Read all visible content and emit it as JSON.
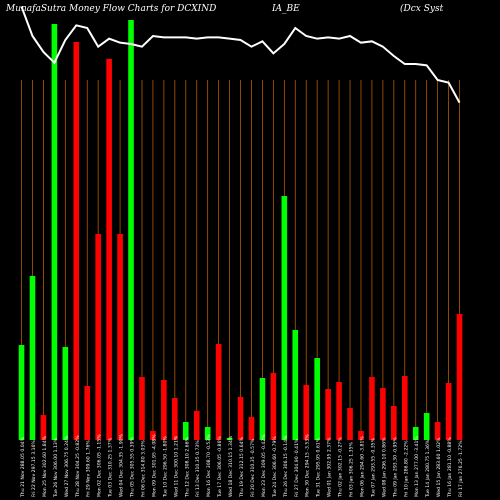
{
  "header": {
    "part1": "MunafaSutra  Money Flow  Charts for DCXIND",
    "part2": "IA_BE",
    "part3": "(Dcx Syst"
  },
  "chart_data": {
    "type": "bar",
    "background": "#000000",
    "gridline_color": "#b35a00",
    "colors": {
      "up": "#00ff00",
      "down": "#ff0000",
      "line": "#ffffff"
    },
    "categories": [
      "Fri 17 Jan 2025",
      "Thu 16 Jan 2025",
      "Wed 15 Jan 2025",
      "Tue 14 Jan 2025",
      "Mon 13 Jan 2025",
      "Fri 10 Jan 2025",
      "Thu 09 Jan 2025",
      "Wed 08 Jan 2025",
      "Tue 07 Jan 2025",
      "Mon 06 Jan 2025",
      "Fri 03 Jan 2025",
      "Thu 02 Jan 2025",
      "Wed 01 Jan 2025",
      "Tue 31 Dec 2024",
      "Mon 30 Dec 2024",
      "Fri 27 Dec 2024",
      "Thu 26 Dec 2024",
      "Tue 24 Dec 2024",
      "Mon 23 Dec 2024",
      "Fri 20 Dec 2024",
      "Thu 19 Dec 2024",
      "Wed 18 Dec 2024",
      "Tue 17 Dec 2024",
      "Mon 16 Dec 2024",
      "Fri 13 Dec 2024",
      "Thu 12 Dec 2024",
      "Wed 11 Dec 2024",
      "Tue 10 Dec 2024",
      "Mon 09 Dec 2024",
      "Fri 06 Dec 2024",
      "Thu 05 Dec 2024",
      "Wed 04 Dec 2024",
      "Tue 03 Dec 2024",
      "Mon 02 Dec 2024",
      "Fri 29 Nov 2024",
      "Thu 28 Nov 2024",
      "Wed 27 Nov 2024",
      "Tue 26 Nov 2024",
      "Mon 25 Nov 2024",
      "Fri 22 Nov 2024",
      "Thu 21 Nov 2024"
    ],
    "tick_labels": [
      "Fri 17 Jan 276.25 -1.72%",
      "Thu 16 Jan 281.10 -0.88%",
      "Wed 15 Jan 283.60 1.02%",
      "Tue 14 Jan 280.75 1.36%",
      "Mon 13 Jan 277.00 -3.41%",
      "Fri 10 Jan 286.80 -2.22%",
      "Thu 09 Jan 293.30 -0.95%",
      "Wed 08 Jan 296.10 0.86%",
      "Tue 07 Jan 293.55 -0.35%",
      "Mon 06 Jan 294.60 -3.81%",
      "Fri 03 Jan 306.25 1.35%",
      "Thu 02 Jan 302.15 -0.27%",
      "Wed 01 Jan 302.95 2.37%",
      "Tue 31 Dec 295.95 0.61%",
      "Mon 30 Dec 294.15 -3.53%",
      "Fri 27 Dec 304.90 -0.41%",
      "Thu 26 Dec 306.15 -0.14%",
      "Tue 24 Dec 306.60 -0.79%",
      "Mon 23 Dec 309.05 -0.42%",
      "Fri 20 Dec 310.35 -0.57%",
      "Thu 19 Dec 312.15 0.64%",
      "Wed 18 Dec 310.15 1.34%",
      "Tue 17 Dec 306.05 -0.86%",
      "Mon 16 Dec 308.70 -0.53%",
      "Fri 13 Dec 310.35 0.73%",
      "Thu 12 Dec 308.10 2.66%",
      "Wed 11 Dec 300.10 1.21%",
      "Tue 10 Dec 296.50 -1.80%",
      "Mon 09 Dec 301.95 -4.08%",
      "Fri 06 Dec 314.80 3.03%",
      "Thu 05 Dec 305.55 0.39%",
      "Wed 04 Dec 304.35 -1.90%",
      "Tue 03 Dec 310.25 1.37%",
      "Mon 02 Dec 306.05 -1.15%",
      "Fri 29 Nov 309.60 1.76%",
      "Thu 28 Nov 304.25 -0.82%",
      "Wed 27 Nov 306.75 0.24%",
      "Tue 26 Nov 306.00 1.13%",
      "Mon 25 Nov 302.60 1.84%",
      "Fri 22 Nov 297.15 3.16%",
      "Thu 21 Nov 288.05 0.04%"
    ],
    "bars": [
      {
        "color": "down",
        "value": 126
      },
      {
        "color": "down",
        "value": 57
      },
      {
        "color": "down",
        "value": 18
      },
      {
        "color": "up",
        "value": 27
      },
      {
        "color": "up",
        "value": 13
      },
      {
        "color": "down",
        "value": 64
      },
      {
        "color": "down",
        "value": 34
      },
      {
        "color": "down",
        "value": 52
      },
      {
        "color": "down",
        "value": 63
      },
      {
        "color": "down",
        "value": 9
      },
      {
        "color": "down",
        "value": 32
      },
      {
        "color": "down",
        "value": 58
      },
      {
        "color": "down",
        "value": 51
      },
      {
        "color": "up",
        "value": 82
      },
      {
        "color": "down",
        "value": 55
      },
      {
        "color": "up",
        "value": 110
      },
      {
        "color": "up",
        "value": 244
      },
      {
        "color": "down",
        "value": 67
      },
      {
        "color": "up",
        "value": 62
      },
      {
        "color": "down",
        "value": 23
      },
      {
        "color": "down",
        "value": 43
      },
      {
        "color": "up",
        "value": 2
      },
      {
        "color": "down",
        "value": 96
      },
      {
        "color": "up",
        "value": 13
      },
      {
        "color": "down",
        "value": 29
      },
      {
        "color": "up",
        "value": 18
      },
      {
        "color": "down",
        "value": 42
      },
      {
        "color": "down",
        "value": 60
      },
      {
        "color": "down",
        "value": 9
      },
      {
        "color": "down",
        "value": 63
      },
      {
        "color": "up",
        "value": 420
      },
      {
        "color": "down",
        "value": 206
      },
      {
        "color": "down",
        "value": 381
      },
      {
        "color": "down",
        "value": 206
      },
      {
        "color": "down",
        "value": 54
      },
      {
        "color": "down",
        "value": 398
      },
      {
        "color": "up",
        "value": 93
      },
      {
        "color": "up",
        "value": 416
      },
      {
        "color": "down",
        "value": 25
      },
      {
        "color": "up",
        "value": 164
      },
      {
        "color": "up",
        "value": 95
      }
    ],
    "price_line": [
      253,
      268,
      270,
      281,
      282,
      282,
      288,
      295,
      299,
      298,
      303,
      301,
      302,
      301,
      303,
      309,
      297,
      290,
      299,
      295,
      300,
      301,
      302,
      302,
      301,
      302,
      302,
      302,
      303,
      295,
      297,
      298,
      301,
      295,
      309,
      311,
      300,
      283,
      291,
      303,
      325
    ],
    "ylim": [
      0,
      440
    ],
    "line_ylim": [
      0,
      330
    ]
  }
}
